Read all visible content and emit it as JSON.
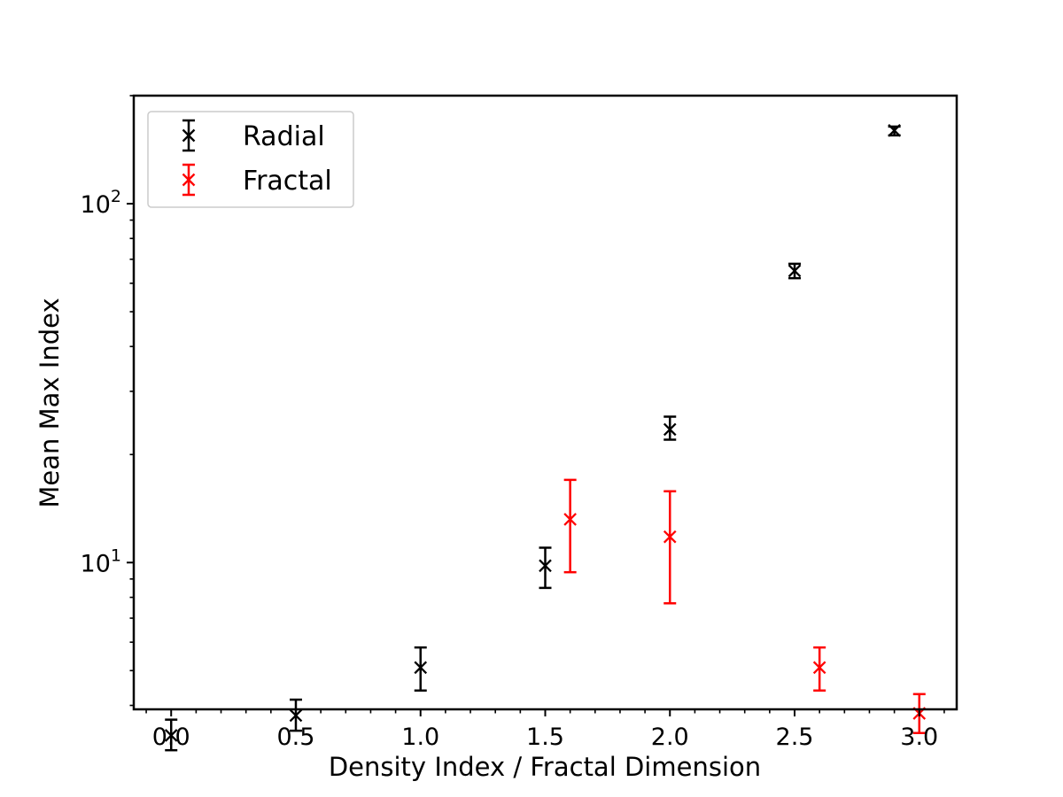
{
  "chart_data": {
    "type": "scatter",
    "xlabel": "Density Index / Fractal Dimension",
    "ylabel": "Mean Max Index",
    "xlim": [
      -0.15,
      3.15
    ],
    "ylim": [
      3.9,
      200
    ],
    "y_scale": "log",
    "grid": false,
    "legend_position": "top-left",
    "x_ticks": [
      0.0,
      0.5,
      1.0,
      1.5,
      2.0,
      2.5,
      3.0
    ],
    "x_tick_labels": [
      "0.0",
      "0.5",
      "1.0",
      "1.5",
      "2.0",
      "2.5",
      "3.0"
    ],
    "y_ticks": [
      10,
      100
    ],
    "y_tick_labels": [
      {
        "base": "10",
        "exp": "1"
      },
      {
        "base": "10",
        "exp": "2"
      }
    ],
    "series": [
      {
        "name": "Radial",
        "color": "#000000",
        "marker": "x",
        "points": [
          {
            "x": 0.0,
            "y": 3.3,
            "yerr_low": 3.0,
            "yerr_high": 3.65
          },
          {
            "x": 0.5,
            "y": 3.75,
            "yerr_low": 3.4,
            "yerr_high": 4.15
          },
          {
            "x": 1.0,
            "y": 5.1,
            "yerr_low": 4.4,
            "yerr_high": 5.8
          },
          {
            "x": 1.5,
            "y": 9.8,
            "yerr_low": 8.5,
            "yerr_high": 11.0
          },
          {
            "x": 2.0,
            "y": 23.5,
            "yerr_low": 22.0,
            "yerr_high": 25.5
          },
          {
            "x": 2.5,
            "y": 65.0,
            "yerr_low": 62.0,
            "yerr_high": 68.0
          },
          {
            "x": 2.9,
            "y": 160.0,
            "yerr_low": 155.0,
            "yerr_high": 164.0
          }
        ]
      },
      {
        "name": "Fractal",
        "color": "#ff0000",
        "marker": "x",
        "points": [
          {
            "x": 1.6,
            "y": 13.2,
            "yerr_low": 9.4,
            "yerr_high": 17.0
          },
          {
            "x": 2.0,
            "y": 11.8,
            "yerr_low": 7.7,
            "yerr_high": 15.8
          },
          {
            "x": 2.6,
            "y": 5.1,
            "yerr_low": 4.4,
            "yerr_high": 5.8
          },
          {
            "x": 3.0,
            "y": 3.8,
            "yerr_low": 3.35,
            "yerr_high": 4.3
          }
        ]
      }
    ]
  }
}
